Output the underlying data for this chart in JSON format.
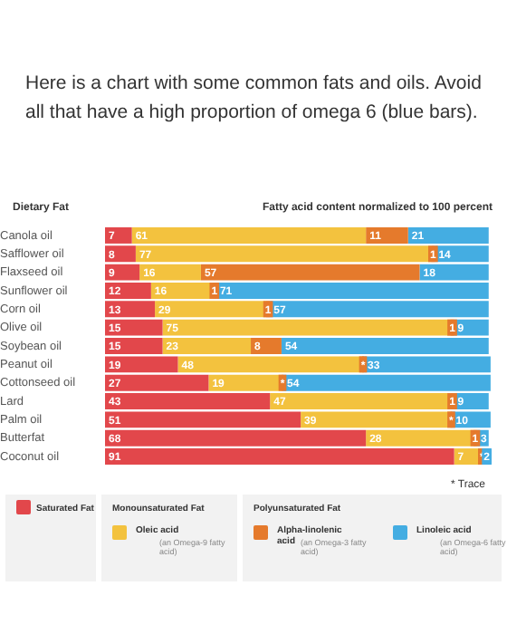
{
  "chart_data": {
    "type": "bar",
    "orientation": "horizontal",
    "stacked": true,
    "title": "Here is a chart with some common fats and oils. Avoid all that have a high proportion of omega 6 (blue bars).",
    "ylabel": "Dietary Fat",
    "xlabel": "Fatty acid content normalized to 100 percent",
    "categories": [
      "Canola oil",
      "Safflower oil",
      "Flaxseed oil",
      "Sunflower oil",
      "Corn oil",
      "Olive oil",
      "Soybean oil",
      "Peanut oil",
      "Cottonseed oil",
      "Lard",
      "Palm oil",
      "Butterfat",
      "Coconut oil"
    ],
    "xlim": [
      0,
      101
    ],
    "tick_labels": "y",
    "legend": "bottom",
    "series": [
      {
        "name": "Saturated Fat",
        "color": "#e2474b",
        "values": [
          7,
          8,
          9,
          12,
          13,
          15,
          15,
          19,
          27,
          43,
          51,
          68,
          91
        ],
        "value_labels": [
          "7",
          "8",
          "9",
          "12",
          "13",
          "15",
          "15",
          "19",
          "27",
          "43",
          "51",
          "68",
          "91"
        ]
      },
      {
        "name": "Oleic acid (an Omega-9 fatty acid)",
        "color": "#f3c23e",
        "values": [
          61,
          77,
          16,
          16,
          29,
          75,
          23,
          48,
          19,
          47,
          39,
          28,
          7
        ],
        "value_labels": [
          "61",
          "77",
          "16",
          "16",
          "29",
          "75",
          "23",
          "48",
          "19",
          "47",
          "39",
          "28",
          "7"
        ]
      },
      {
        "name": "Alpha-linolenic acid (an Omega-3 fatty acid)",
        "color": "#e57a2c",
        "values": [
          11,
          1,
          57,
          1,
          1,
          1,
          8,
          0.5,
          0.5,
          1,
          0.5,
          1,
          0.5
        ],
        "value_labels": [
          "11",
          "1",
          "57",
          "1",
          "1",
          "1",
          "8",
          "*",
          "*",
          "1",
          "*",
          "1",
          "*"
        ]
      },
      {
        "name": "Linoleic acid (an Omega-6 fatty acid)",
        "color": "#44ade2",
        "values": [
          21,
          14,
          18,
          71,
          57,
          9,
          54,
          33,
          54,
          9,
          10,
          3,
          2
        ],
        "value_labels": [
          "21",
          "14",
          "18",
          "71",
          "57",
          "9",
          "54",
          "33",
          "54",
          "9",
          "10",
          "3",
          "2"
        ]
      }
    ],
    "annotations": [
      "Monounsaturated Fat",
      "Polyunsaturated Fat",
      "* Trace"
    ]
  }
}
